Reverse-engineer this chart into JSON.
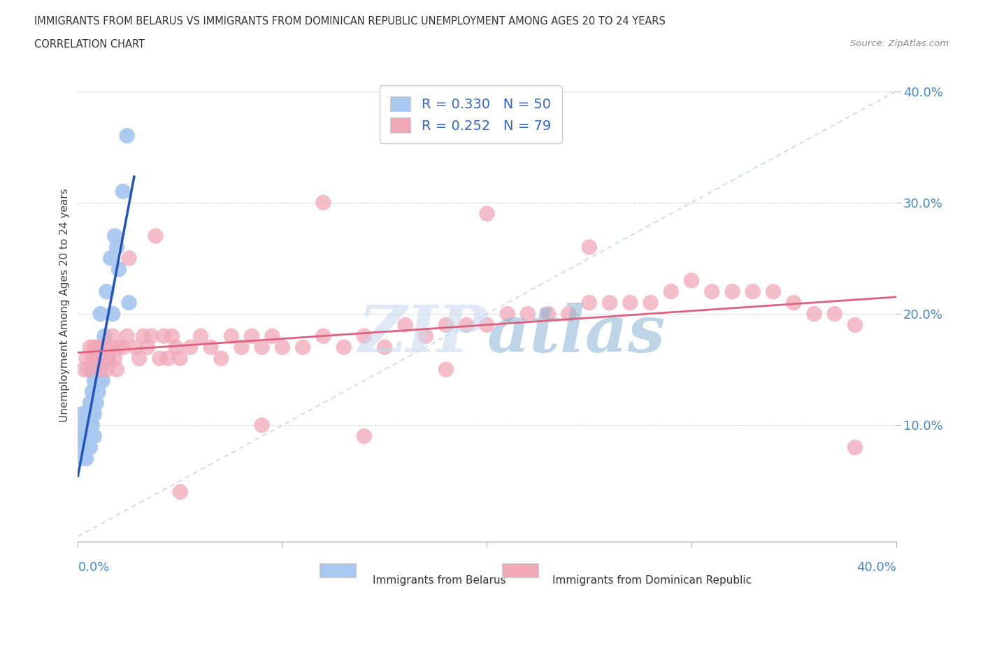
{
  "title_line1": "IMMIGRANTS FROM BELARUS VS IMMIGRANTS FROM DOMINICAN REPUBLIC UNEMPLOYMENT AMONG AGES 20 TO 24 YEARS",
  "title_line2": "CORRELATION CHART",
  "source": "Source: ZipAtlas.com",
  "ylabel": "Unemployment Among Ages 20 to 24 years",
  "legend_label1": "Immigrants from Belarus",
  "legend_label2": "Immigrants from Dominican Republic",
  "R1": 0.33,
  "N1": 50,
  "R2": 0.252,
  "N2": 79,
  "color_belarus": "#a8c8f0",
  "color_dr": "#f0a8b8",
  "color_belarus_line": "#2255bb",
  "color_dr_line": "#e06080",
  "color_diag": "#aabbdd",
  "xlim": [
    0.0,
    0.4
  ],
  "ylim": [
    -0.005,
    0.42
  ],
  "xticks": [
    0.0,
    0.1,
    0.2,
    0.3,
    0.4
  ],
  "yticks": [
    0.1,
    0.2,
    0.3,
    0.4
  ],
  "belarus_x": [
    0.001,
    0.001,
    0.002,
    0.002,
    0.002,
    0.002,
    0.003,
    0.003,
    0.003,
    0.003,
    0.003,
    0.004,
    0.004,
    0.004,
    0.004,
    0.005,
    0.005,
    0.005,
    0.005,
    0.006,
    0.006,
    0.006,
    0.006,
    0.007,
    0.007,
    0.007,
    0.007,
    0.008,
    0.008,
    0.008,
    0.009,
    0.009,
    0.01,
    0.01,
    0.01,
    0.011,
    0.011,
    0.012,
    0.012,
    0.013,
    0.014,
    0.015,
    0.016,
    0.017,
    0.018,
    0.019,
    0.02,
    0.022,
    0.024,
    0.025
  ],
  "belarus_y": [
    0.08,
    0.09,
    0.09,
    0.1,
    0.1,
    0.11,
    0.07,
    0.08,
    0.08,
    0.09,
    0.1,
    0.07,
    0.08,
    0.09,
    0.1,
    0.08,
    0.09,
    0.1,
    0.11,
    0.08,
    0.09,
    0.1,
    0.12,
    0.1,
    0.11,
    0.13,
    0.15,
    0.09,
    0.11,
    0.14,
    0.12,
    0.16,
    0.13,
    0.14,
    0.17,
    0.15,
    0.2,
    0.14,
    0.16,
    0.18,
    0.22,
    0.16,
    0.25,
    0.2,
    0.27,
    0.26,
    0.24,
    0.31,
    0.36,
    0.21
  ],
  "dr_x": [
    0.003,
    0.004,
    0.005,
    0.006,
    0.007,
    0.008,
    0.009,
    0.01,
    0.011,
    0.012,
    0.013,
    0.014,
    0.015,
    0.016,
    0.017,
    0.018,
    0.019,
    0.02,
    0.022,
    0.024,
    0.025,
    0.028,
    0.03,
    0.032,
    0.034,
    0.036,
    0.038,
    0.04,
    0.042,
    0.044,
    0.046,
    0.048,
    0.05,
    0.055,
    0.06,
    0.065,
    0.07,
    0.075,
    0.08,
    0.085,
    0.09,
    0.095,
    0.1,
    0.11,
    0.12,
    0.13,
    0.14,
    0.15,
    0.16,
    0.17,
    0.18,
    0.19,
    0.2,
    0.21,
    0.22,
    0.23,
    0.24,
    0.25,
    0.26,
    0.27,
    0.28,
    0.29,
    0.3,
    0.31,
    0.32,
    0.33,
    0.34,
    0.35,
    0.36,
    0.37,
    0.38,
    0.2,
    0.12,
    0.25,
    0.18,
    0.09,
    0.05,
    0.14,
    0.38
  ],
  "dr_y": [
    0.15,
    0.16,
    0.15,
    0.17,
    0.16,
    0.17,
    0.16,
    0.17,
    0.15,
    0.16,
    0.17,
    0.15,
    0.16,
    0.17,
    0.18,
    0.16,
    0.15,
    0.17,
    0.17,
    0.18,
    0.25,
    0.17,
    0.16,
    0.18,
    0.17,
    0.18,
    0.27,
    0.16,
    0.18,
    0.16,
    0.18,
    0.17,
    0.16,
    0.17,
    0.18,
    0.17,
    0.16,
    0.18,
    0.17,
    0.18,
    0.17,
    0.18,
    0.17,
    0.17,
    0.18,
    0.17,
    0.18,
    0.17,
    0.19,
    0.18,
    0.19,
    0.19,
    0.19,
    0.2,
    0.2,
    0.2,
    0.2,
    0.21,
    0.21,
    0.21,
    0.21,
    0.22,
    0.23,
    0.22,
    0.22,
    0.22,
    0.22,
    0.21,
    0.2,
    0.2,
    0.19,
    0.29,
    0.3,
    0.26,
    0.15,
    0.1,
    0.04,
    0.09,
    0.08
  ]
}
